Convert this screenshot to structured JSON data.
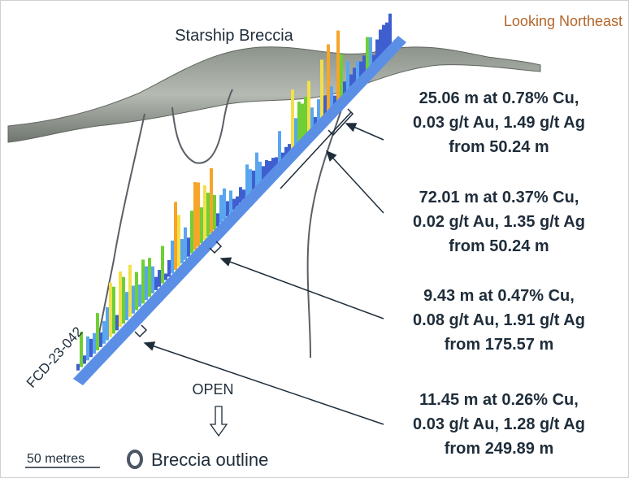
{
  "header": {
    "title": "Starship Breccia",
    "view": "Looking Northeast"
  },
  "drill_hole": {
    "label": "FCD-23-042"
  },
  "intercepts": [
    {
      "lines": [
        "25.06 m at 0.78% Cu,",
        "0.03 g/t Au, 1.49 g/t Ag",
        "from 50.24 m"
      ]
    },
    {
      "lines": [
        "72.01 m at 0.37% Cu,",
        "0.02 g/t Au, 1.35 g/t Ag",
        "from 50.24 m"
      ]
    },
    {
      "lines": [
        "9.43 m at 0.47% Cu,",
        "0.08 g/t Au, 1.91 g/t Ag",
        "from 175.57 m"
      ]
    },
    {
      "lines": [
        "11.45 m at 0.26% Cu,",
        "0.03 g/t Au, 1.28 g/t Ag",
        "from 249.89 m"
      ]
    }
  ],
  "annotations": {
    "open": "OPEN"
  },
  "legend": {
    "scale": "50 metres",
    "outline": "Breccia outline"
  }
}
